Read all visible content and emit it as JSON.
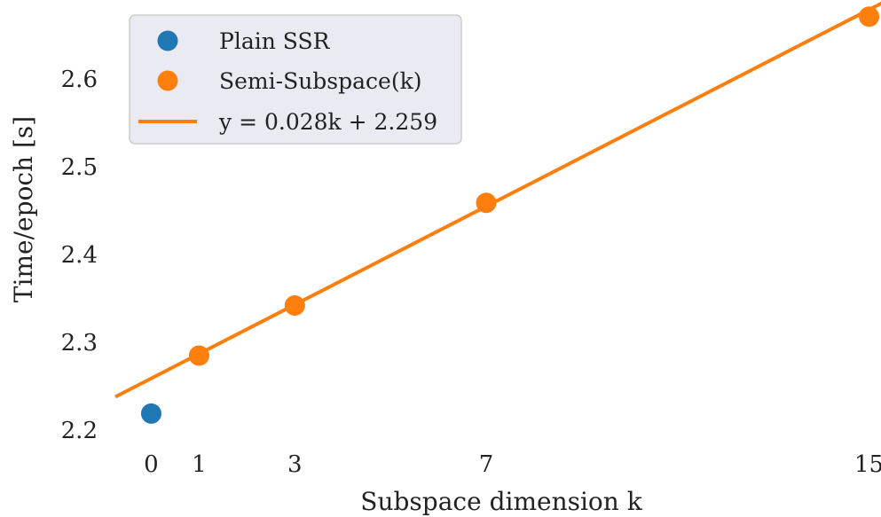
{
  "chart_data": {
    "type": "scatter",
    "title": "",
    "xlabel": "Subspace dimension k",
    "ylabel": "Time/epoch [s]",
    "xlim": [
      -0.75,
      15.25
    ],
    "ylim": [
      2.185,
      2.69
    ],
    "xticks": [
      0,
      1,
      3,
      7,
      15
    ],
    "yticks": [
      2.2,
      2.3,
      2.4,
      2.5,
      2.6
    ],
    "ytick_labels": [
      "2.2",
      "2.3",
      "2.4",
      "2.5",
      "2.6"
    ],
    "grid": false,
    "legend_position": "upper-left",
    "series": [
      {
        "name": "Plain SSR",
        "kind": "scatter",
        "color": "#1f77b4",
        "x": [
          0
        ],
        "y": [
          2.219
        ]
      },
      {
        "name": "Semi-Subspace(k)",
        "kind": "scatter",
        "color": "#ff7f0e",
        "x": [
          1,
          3,
          7,
          15
        ],
        "y": [
          2.285,
          2.342,
          2.459,
          2.671
        ]
      },
      {
        "name": "y = 0.028k + 2.259",
        "kind": "line",
        "color": "#ff7f0e",
        "slope": 0.028,
        "intercept": 2.259
      }
    ]
  }
}
